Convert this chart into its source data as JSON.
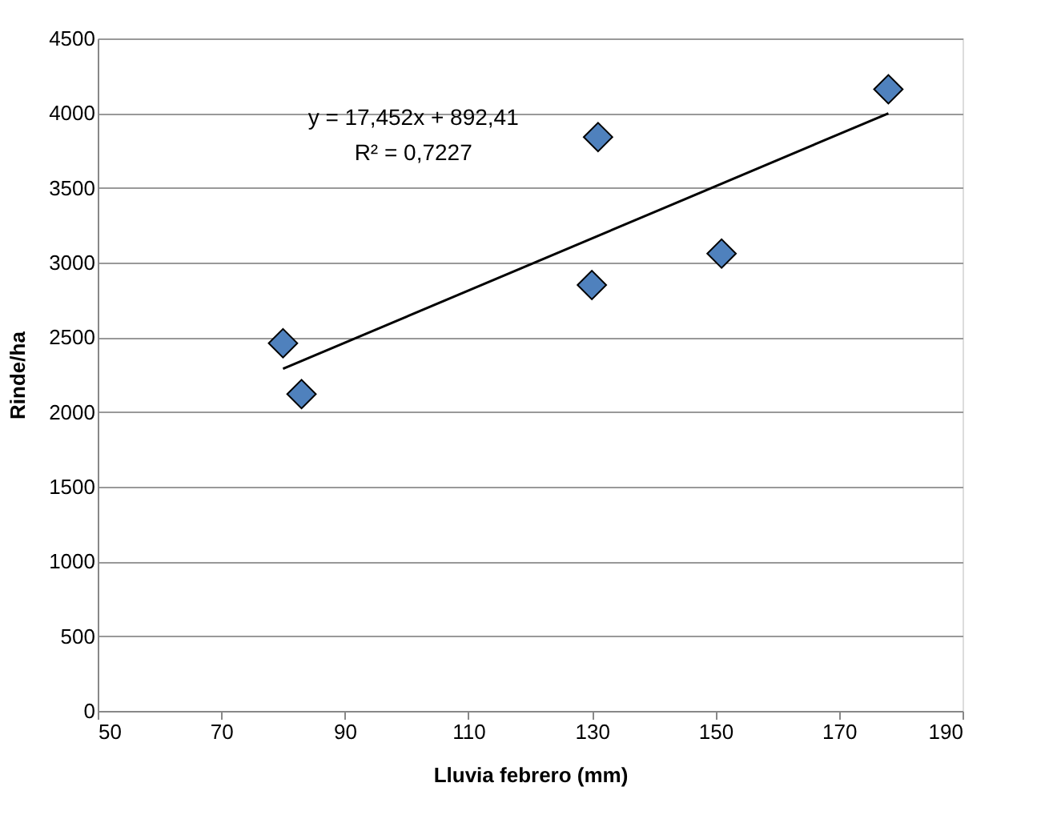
{
  "chart_data": {
    "type": "scatter",
    "xlabel": "Lluvia febrero (mm)",
    "ylabel": "Rinde/ha",
    "grid": "y",
    "xlim": [
      50,
      190
    ],
    "xticks": [
      50,
      70,
      90,
      110,
      130,
      150,
      170,
      190
    ],
    "ylim": [
      0,
      4500
    ],
    "yticks": [
      0,
      500,
      1000,
      1500,
      2000,
      2500,
      3000,
      3500,
      4000,
      4500
    ],
    "annotations": [
      "y = 17,452x + 892,41",
      "R² = 0,7227"
    ],
    "series": [
      {
        "color": "#4f81bd",
        "marker": "diamond",
        "x": [
          80,
          83,
          130,
          131,
          151,
          178
        ],
        "values": [
          2460,
          2120,
          2850,
          3840,
          3060,
          4160
        ]
      },
      {
        "type": "line",
        "marker": "none",
        "color": "#000000",
        "x": [
          80,
          178
        ],
        "values": [
          2289,
          3999
        ]
      }
    ]
  }
}
